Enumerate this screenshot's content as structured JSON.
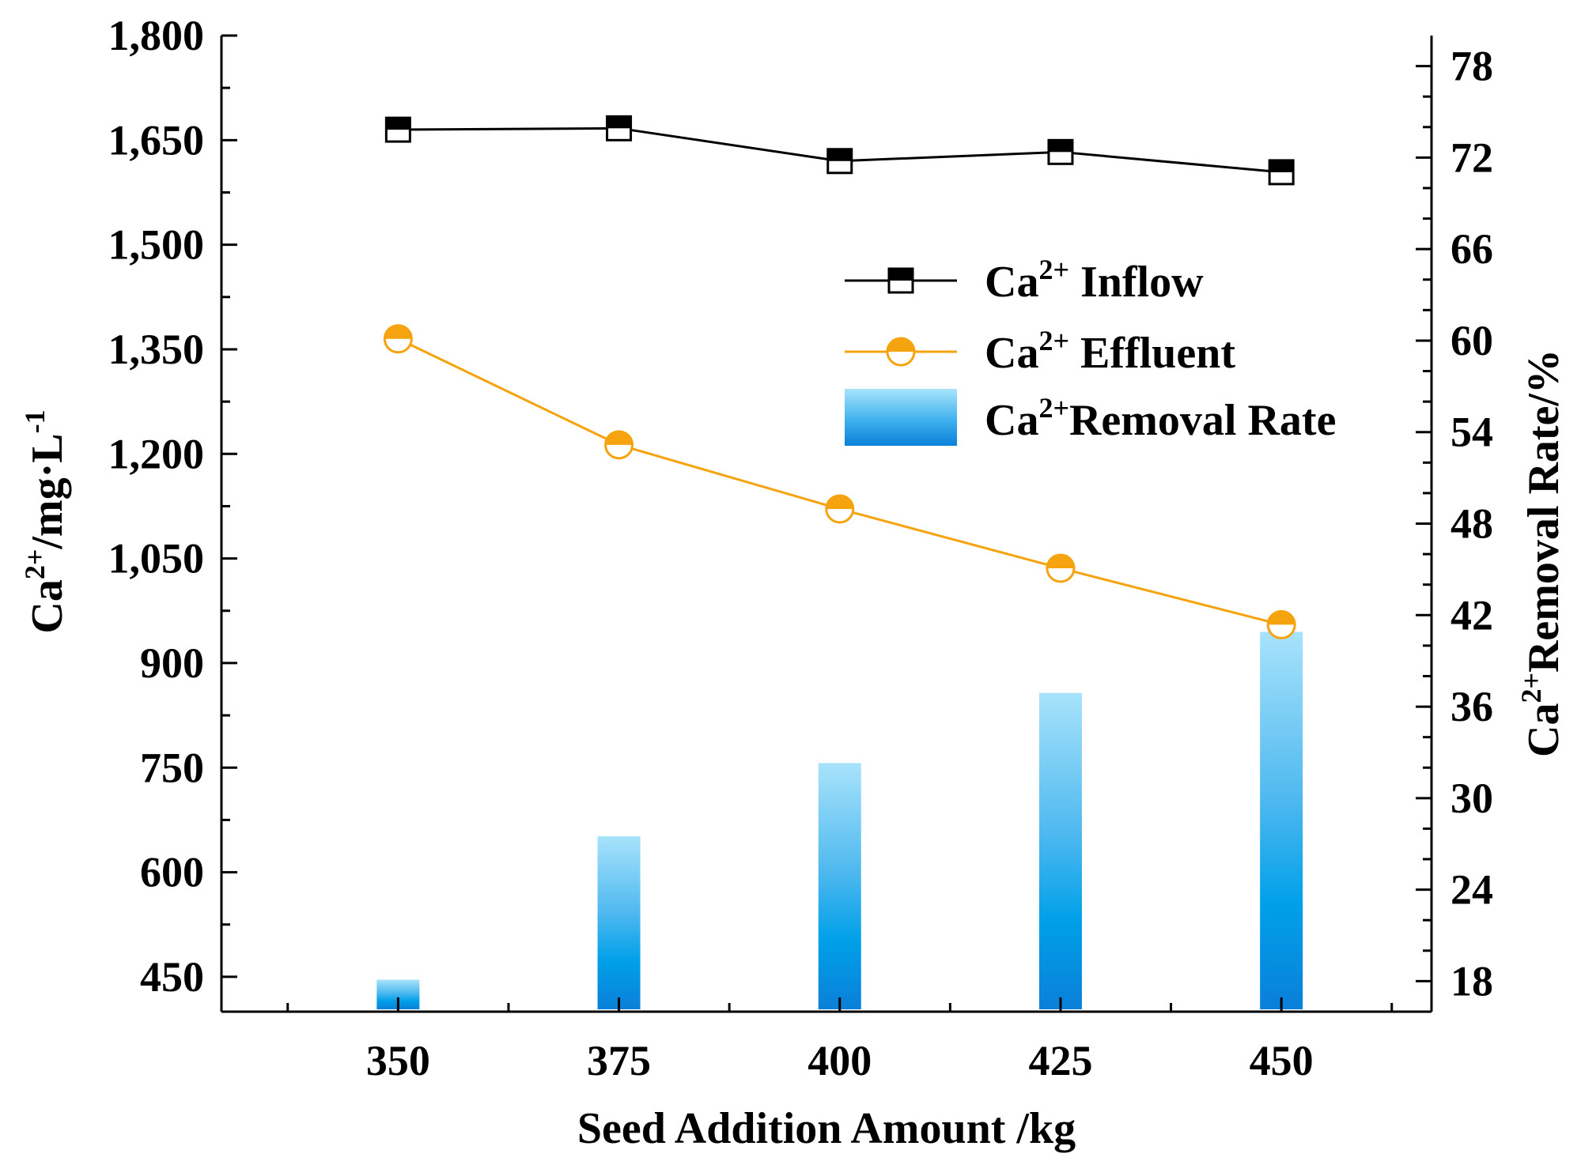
{
  "chart_data": {
    "type": "bar+line",
    "title": "",
    "categories": [
      "350",
      "375",
      "400",
      "425",
      "450"
    ],
    "x": [
      350,
      375,
      400,
      425,
      450
    ],
    "xlabel": "Seed Addition Amount /kg",
    "xlim": [
      330,
      467
    ],
    "ylabel_left": {
      "main": "Ca",
      "sup": "2+",
      "rest": "/mg·L",
      "sup2": "-1"
    },
    "ylim_left": [
      400,
      1800
    ],
    "yticks_left": [
      450,
      600,
      750,
      900,
      1050,
      1200,
      1350,
      1500,
      1650,
      1800
    ],
    "ytick_labels_left": [
      "450",
      "600",
      "750",
      "900",
      "1,050",
      "1,200",
      "1,350",
      "1,500",
      "1,650",
      "1,800"
    ],
    "ylabel_right": {
      "main": "Ca",
      "sup": "2+",
      "rest": "Removal Rate/%"
    },
    "ylim_right": [
      16,
      80
    ],
    "yticks_right": [
      18,
      24,
      30,
      36,
      42,
      48,
      54,
      60,
      66,
      72,
      78
    ],
    "series": [
      {
        "name": "Inflow",
        "label_main": "Ca",
        "label_sup": "2+",
        "label_rest": " Inflow",
        "type": "line",
        "axis": "left",
        "color": "#000000",
        "marker": "square-half",
        "values": [
          1665,
          1667,
          1620,
          1633,
          1604
        ]
      },
      {
        "name": "Effluent",
        "label_main": "Ca",
        "label_sup": "2+",
        "label_rest": " Effluent",
        "type": "line",
        "axis": "left",
        "color": "#f5a30e",
        "marker": "circle-half",
        "values": [
          1365,
          1213,
          1121,
          1036,
          955
        ]
      },
      {
        "name": "Removal Rate",
        "label_main": "Ca",
        "label_sup": "2+",
        "label_rest": "Removal Rate",
        "type": "bar",
        "axis": "right",
        "color_top": "#a8e3fb",
        "color_mid": "#00a0e9",
        "color_bottom": "#0a80d8",
        "values": [
          18.1,
          27.5,
          32.3,
          36.9,
          40.9
        ]
      }
    ],
    "legend_position": "top-right"
  }
}
